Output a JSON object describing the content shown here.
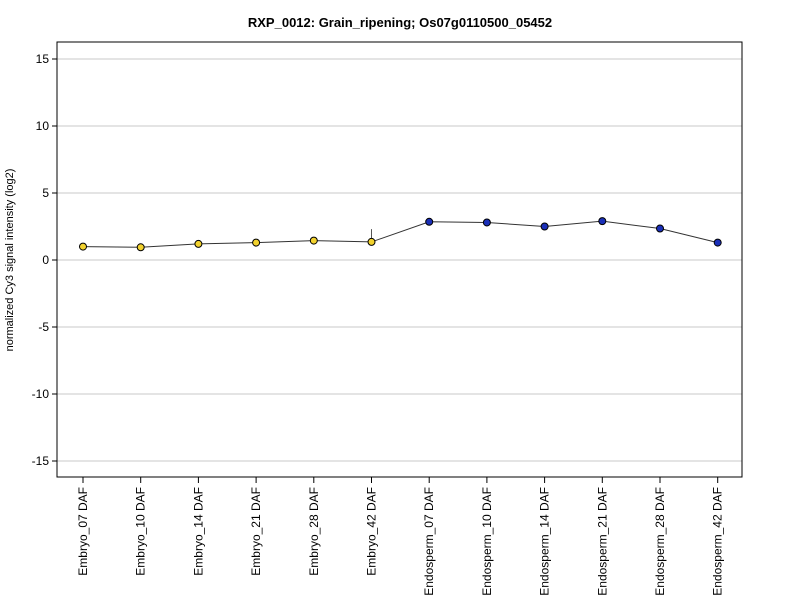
{
  "chart_data": {
    "type": "line",
    "title": "RXP_0012: Grain_ripening; Os07g0110500_05452",
    "ylabel": "normalized Cy3 signal intensity (log2)",
    "xlabel": "",
    "ylim": [
      -16,
      16
    ],
    "yticks": [
      15,
      10,
      5,
      0,
      -5,
      -10,
      -15
    ],
    "grid": true,
    "categories": [
      "Embryo_07 DAF",
      "Embryo_10 DAF",
      "Embryo_14 DAF",
      "Embryo_21 DAF",
      "Embryo_28 DAF",
      "Embryo_42 DAF",
      "Endosperm_07 DAF",
      "Endosperm_10 DAF",
      "Endosperm_14 DAF",
      "Endosperm_21 DAF",
      "Endosperm_28 DAF",
      "Endosperm_42 DAF"
    ],
    "values": [
      1.0,
      0.95,
      1.2,
      1.3,
      1.45,
      1.35,
      2.85,
      2.8,
      2.5,
      2.9,
      2.35,
      1.3
    ],
    "error_bars": [
      {
        "index": 5,
        "low": 1.35,
        "high": 2.3
      }
    ],
    "point_colors": [
      "#f2d22e",
      "#f2d22e",
      "#f2d22e",
      "#f2d22e",
      "#f2d22e",
      "#f2d22e",
      "#1a2fb8",
      "#1a2fb8",
      "#1a2fb8",
      "#1a2fb8",
      "#1a2fb8",
      "#1a2fb8"
    ],
    "line_color": "#333333",
    "grid_color": "#c8c8c8"
  }
}
